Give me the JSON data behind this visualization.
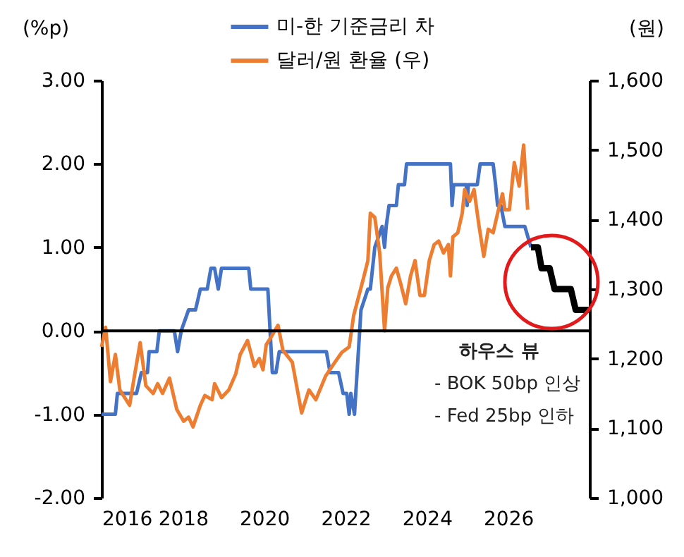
{
  "chart_data": {
    "type": "line",
    "ylabel": "(%p)",
    "y2label": "(원)",
    "xlim": [
      2016,
      2028
    ],
    "xticks": [
      2016,
      2018,
      2020,
      2022,
      2024,
      2026
    ],
    "ylim": [
      -2,
      3
    ],
    "yticks": [
      {
        "value": -2,
        "label": "-2.00"
      },
      {
        "value": -1,
        "label": "-1.00"
      },
      {
        "value": 0,
        "label": "0.00"
      },
      {
        "value": 1,
        "label": "1.00"
      },
      {
        "value": 2,
        "label": "2.00"
      },
      {
        "value": 3,
        "label": "3.00"
      }
    ],
    "y2lim": [
      1000,
      1600
    ],
    "y2ticks": [
      {
        "value": 1000,
        "label": "1,000"
      },
      {
        "value": 1100,
        "label": "1,100"
      },
      {
        "value": 1200,
        "label": "1,200"
      },
      {
        "value": 1300,
        "label": "1,300"
      },
      {
        "value": 1400,
        "label": "1,400"
      },
      {
        "value": 1500,
        "label": "1,500"
      },
      {
        "value": 1600,
        "label": "1,600"
      }
    ],
    "legend": "top",
    "grid": false,
    "ref_lines": [
      {
        "axis": "y",
        "value": 0,
        "color": "#000000"
      }
    ],
    "annotations": [
      "하우스 뷰",
      "- BOK 50bp 인상",
      "- Fed 25bp 인하"
    ],
    "series": [
      {
        "name": "미-한 기준금리 차",
        "color": "#4472c4",
        "x": [
          2016.0,
          2016.34,
          2016.39,
          2016.86,
          2016.98,
          2017.13,
          2017.17,
          2017.36,
          2017.42,
          2017.79,
          2017.87,
          2017.96,
          2018.14,
          2018.31,
          2018.43,
          2018.6,
          2018.69,
          2018.78,
          2018.87,
          2018.95,
          2019.62,
          2019.67,
          2020.09,
          2020.2,
          2020.29,
          2020.37,
          2021.53,
          2021.62,
          2021.83,
          2021.94,
          2022.03,
          2022.09,
          2022.13,
          2022.22,
          2022.38,
          2022.55,
          2022.61,
          2022.72,
          2022.9,
          2022.96,
          2023.0,
          2023.07,
          2023.25,
          2023.3,
          2023.45,
          2023.5,
          2024.58,
          2024.62,
          2024.66,
          2024.97,
          2024.99,
          2025.02,
          2025.24,
          2025.31,
          2025.63,
          2025.69,
          2025.74,
          2025.82,
          2025.92,
          2026.41,
          2026.56
        ],
        "values": [
          -1.0,
          -1.0,
          -0.75,
          -0.75,
          -0.5,
          -0.5,
          -0.25,
          -0.25,
          0,
          0,
          -0.25,
          0,
          0.25,
          0.25,
          0.5,
          0.5,
          0.75,
          0.75,
          0.5,
          0.75,
          0.75,
          0.5,
          0.5,
          -0.5,
          -0.5,
          -0.25,
          -0.25,
          -0.5,
          -0.5,
          -0.75,
          -0.75,
          -1.0,
          -0.75,
          -1.0,
          0.25,
          0.5,
          0.5,
          1.0,
          1.25,
          1.0,
          1.25,
          1.5,
          1.5,
          1.75,
          1.75,
          2.0,
          2.0,
          1.5,
          1.75,
          1.75,
          1.5,
          1.75,
          1.75,
          2.0,
          2.0,
          1.75,
          1.5,
          1.5,
          1.25,
          1.25,
          1.0
        ]
      },
      {
        "name": "달러/원 환율 (우)",
        "color": "#ed7d31",
        "axis": "y2",
        "x": [
          2016.0,
          2016.1,
          2016.22,
          2016.34,
          2016.45,
          2016.69,
          2016.8,
          2016.95,
          2017.09,
          2017.27,
          2017.38,
          2017.5,
          2017.67,
          2017.85,
          2018.02,
          2018.14,
          2018.25,
          2018.43,
          2018.54,
          2018.72,
          2018.78,
          2018.95,
          2019.13,
          2019.3,
          2019.41,
          2019.59,
          2019.76,
          2019.88,
          2019.97,
          2020.05,
          2020.17,
          2020.34,
          2020.46,
          2020.69,
          2020.92,
          2021.1,
          2021.27,
          2021.51,
          2021.74,
          2021.91,
          2022.09,
          2022.2,
          2022.43,
          2022.55,
          2022.61,
          2022.72,
          2022.84,
          2022.96,
          2023.04,
          2023.13,
          2023.25,
          2023.36,
          2023.48,
          2023.6,
          2023.71,
          2023.83,
          2023.94,
          2024.06,
          2024.18,
          2024.29,
          2024.41,
          2024.53,
          2024.58,
          2024.64,
          2024.76,
          2024.87,
          2024.93,
          2025.05,
          2025.16,
          2025.28,
          2025.4,
          2025.51,
          2025.63,
          2025.74,
          2025.86,
          2025.92,
          2026.03,
          2026.15,
          2026.27,
          2026.38,
          2026.48
        ],
        "values": [
          1217,
          1245,
          1167,
          1206,
          1155,
          1133,
          1172,
          1223,
          1161,
          1150,
          1164,
          1150,
          1172,
          1127,
          1110,
          1116,
          1102,
          1133,
          1147,
          1141,
          1164,
          1144,
          1155,
          1178,
          1206,
          1226,
          1189,
          1200,
          1184,
          1220,
          1231,
          1248,
          1212,
          1195,
          1122,
          1155,
          1141,
          1175,
          1195,
          1209,
          1217,
          1262,
          1313,
          1341,
          1409,
          1403,
          1352,
          1240,
          1302,
          1319,
          1330,
          1307,
          1279,
          1319,
          1341,
          1291,
          1291,
          1341,
          1364,
          1369,
          1352,
          1364,
          1319,
          1375,
          1381,
          1409,
          1443,
          1426,
          1443,
          1392,
          1347,
          1386,
          1381,
          1409,
          1437,
          1414,
          1414,
          1482,
          1448,
          1507,
          1414
        ]
      },
      {
        "color": "#000000",
        "x": [
          2026.56,
          2026.73,
          2026.82,
          2027.02,
          2027.14,
          2027.54,
          2027.66,
          2028.0
        ],
        "values": [
          1.0,
          1.0,
          0.75,
          0.75,
          0.5,
          0.5,
          0.25,
          0.25
        ]
      }
    ]
  }
}
